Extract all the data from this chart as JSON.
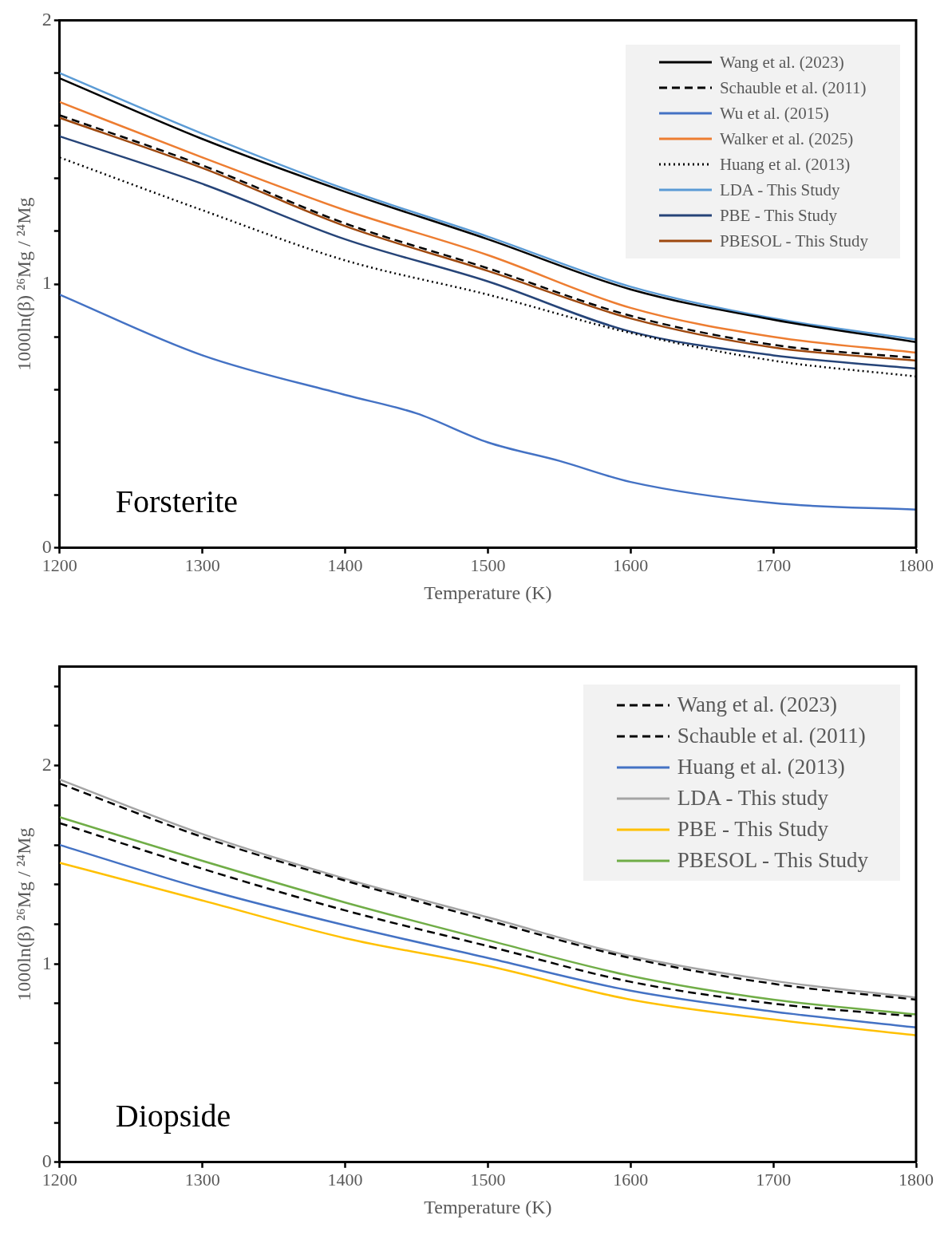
{
  "chart_data": [
    {
      "type": "line",
      "xlabel": "Temperature (K)",
      "ylabel": "1000ln(β) ²⁶Mg / ²⁴Mg",
      "annotations": [
        "Forsterite"
      ],
      "legend": "top right",
      "grid": false,
      "marker": "none",
      "x": [
        1200,
        1300,
        1400,
        1500,
        1600,
        1700,
        1800
      ],
      "xlim": [
        1200,
        1800
      ],
      "xticks": [
        1200,
        1300,
        1400,
        1500,
        1600,
        1700,
        1800
      ],
      "ylim": [
        0,
        2
      ],
      "yticks": [
        0,
        {
          "value": 0.2,
          "label": null
        },
        {
          "value": 0.4,
          "label": null
        },
        {
          "value": 0.6,
          "label": null
        },
        {
          "value": 0.8,
          "label": null
        },
        1,
        {
          "value": 1.2,
          "label": null
        },
        {
          "value": 1.4,
          "label": null
        },
        {
          "value": 1.6,
          "label": null
        },
        {
          "value": 1.8,
          "label": null
        },
        2
      ],
      "series": [
        {
          "name": "Wang et al. (2023)",
          "color": "#000000",
          "line_style": "solid",
          "values": [
            1.78,
            1.55,
            1.35,
            1.17,
            0.98,
            0.865,
            0.78
          ]
        },
        {
          "name": "Schauble et al. (2011)",
          "color": "#000000",
          "line_style": "dashed",
          "values": [
            1.64,
            1.45,
            1.23,
            1.06,
            0.88,
            0.77,
            0.72
          ]
        },
        {
          "name": "Wu et al. (2015)",
          "color": "#4472c4",
          "line_style": "solid",
          "x": [
            1200,
            1300,
            1400,
            1450,
            1500,
            1550,
            1600,
            1700,
            1800
          ],
          "values": [
            0.96,
            0.73,
            0.58,
            0.51,
            0.4,
            0.33,
            0.25,
            0.17,
            0.145
          ]
        },
        {
          "name": "Walker et al. (2025)",
          "color": "#ed7d31",
          "line_style": "solid",
          "values": [
            1.69,
            1.48,
            1.28,
            1.11,
            0.91,
            0.8,
            0.74
          ]
        },
        {
          "name": "Huang et al. (2013)",
          "color": "#000000",
          "line_style": "dotted",
          "values": [
            1.48,
            1.28,
            1.09,
            0.96,
            0.815,
            0.71,
            0.65
          ]
        },
        {
          "name": "LDA - This Study",
          "color": "#5b9bd5",
          "line_style": "solid",
          "values": [
            1.8,
            1.57,
            1.36,
            1.18,
            0.99,
            0.87,
            0.79
          ]
        },
        {
          "name": "PBE - This Study",
          "color": "#264478",
          "line_style": "solid",
          "values": [
            1.56,
            1.38,
            1.17,
            1.01,
            0.82,
            0.73,
            0.68
          ]
        },
        {
          "name": "PBESOL - This Study",
          "color": "#9e480e",
          "line_style": "solid",
          "values": [
            1.63,
            1.44,
            1.22,
            1.05,
            0.87,
            0.76,
            0.71
          ]
        }
      ]
    },
    {
      "type": "line",
      "xlabel": "Temperature (K)",
      "ylabel": "1000ln(β) ²⁶Mg / ²⁴Mg",
      "annotations": [
        "Diopside"
      ],
      "legend": "top right",
      "grid": false,
      "marker": "none",
      "x": [
        1200,
        1300,
        1400,
        1500,
        1600,
        1700,
        1800
      ],
      "xlim": [
        1200,
        1800
      ],
      "xticks": [
        1200,
        1300,
        1400,
        1500,
        1600,
        1700,
        1800
      ],
      "ylim": [
        0,
        2.5
      ],
      "yticks": [
        0,
        {
          "value": 0.2,
          "label": null
        },
        {
          "value": 0.4,
          "label": null
        },
        {
          "value": 0.6,
          "label": null
        },
        {
          "value": 0.8,
          "label": null
        },
        1,
        {
          "value": 1.2,
          "label": null
        },
        {
          "value": 1.4,
          "label": null
        },
        {
          "value": 1.6,
          "label": null
        },
        {
          "value": 1.8,
          "label": null
        },
        2,
        {
          "value": 2.2,
          "label": null
        },
        {
          "value": 2.4,
          "label": null
        }
      ],
      "series": [
        {
          "name": "Wang et al. (2023)",
          "color": "#000000",
          "line_style": "dashed",
          "values": [
            1.91,
            1.64,
            1.42,
            1.22,
            1.03,
            0.9,
            0.82
          ]
        },
        {
          "name": "Schauble et al. (2011)",
          "color": "#000000",
          "line_style": "dashed",
          "values": [
            1.71,
            1.48,
            1.27,
            1.09,
            0.91,
            0.8,
            0.735
          ]
        },
        {
          "name": "Huang et al. (2013)",
          "color": "#4472c4",
          "line_style": "solid",
          "values": [
            1.6,
            1.38,
            1.195,
            1.03,
            0.865,
            0.76,
            0.68
          ]
        },
        {
          "name": "LDA - This study",
          "color": "#a5a5a5",
          "line_style": "solid",
          "values": [
            1.93,
            1.655,
            1.43,
            1.235,
            1.04,
            0.915,
            0.83
          ]
        },
        {
          "name": "PBE - This Study",
          "color": "#ffc000",
          "line_style": "solid",
          "values": [
            1.51,
            1.32,
            1.13,
            0.99,
            0.82,
            0.72,
            0.64
          ]
        },
        {
          "name": "PBESOL - This Study",
          "color": "#70ad47",
          "line_style": "solid",
          "values": [
            1.74,
            1.52,
            1.31,
            1.12,
            0.94,
            0.82,
            0.745
          ]
        }
      ]
    }
  ]
}
